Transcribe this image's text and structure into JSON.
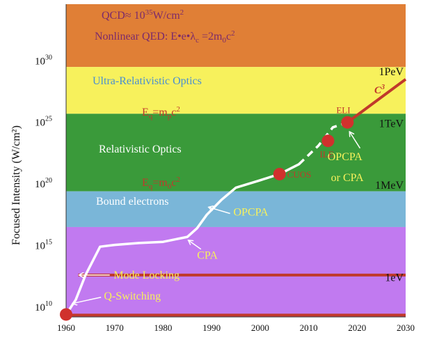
{
  "chart_data": {
    "type": "line",
    "title": "",
    "ylabel": "Focused Intensity (W/cm²)",
    "xlabel": "",
    "xlim": [
      1960,
      2030
    ],
    "ylim_log10": [
      9.2,
      34.6
    ],
    "x_ticks": [
      "1960",
      "1970",
      "1980",
      "1990",
      "2000",
      "2010",
      "2020",
      "2030"
    ],
    "y_ticks": [
      {
        "log": 10,
        "base": "10",
        "exp": "10"
      },
      {
        "log": 15,
        "base": "10",
        "exp": "15"
      },
      {
        "log": 20,
        "base": "10",
        "exp": "20"
      },
      {
        "log": 25,
        "base": "10",
        "exp": "25"
      },
      {
        "log": 30,
        "base": "10",
        "exp": "30"
      }
    ],
    "colors": {
      "qcd_band": "#e07f36",
      "ultra_band": "#f7f15c",
      "relativistic_band": "#3a9a3a",
      "bound_band": "#7ab6d8",
      "nonrel_band": "#c17af0",
      "curve": "#ffffff",
      "marker": "#d0312d",
      "red_line": "#c0392b"
    },
    "bands": [
      {
        "name": "qcd",
        "from_log": 29.5,
        "to_log": 34.6,
        "color_key": "qcd_band"
      },
      {
        "name": "ultra",
        "from_log": 25.7,
        "to_log": 29.5,
        "color_key": "ultra_band"
      },
      {
        "name": "relativistic",
        "from_log": 19.4,
        "to_log": 25.7,
        "color_key": "relativistic_band"
      },
      {
        "name": "bound",
        "from_log": 16.5,
        "to_log": 19.4,
        "color_key": "bound_band"
      },
      {
        "name": "nonrel",
        "from_log": 9.2,
        "to_log": 16.5,
        "color_key": "nonrel_band"
      }
    ],
    "band_labels": {
      "qcd_prefix": "QCD",
      "qcd_approx": "≈",
      "qcd_base": " 10",
      "qcd_exp": "35",
      "qcd_unit": "W/cm",
      "qcd_sq": "2",
      "nqed_prefix": "Nonlinear QED: E•e•λ",
      "nqed_sub_c": "c",
      "nqed_mid": " =2m",
      "nqed_sub_0": "0",
      "nqed_c": "c",
      "nqed_sq": "2",
      "ultra": "Ultra-Relativistic Optics",
      "eq_mp_E": "E",
      "eq_mp_q": "q",
      "eq_mp_mid": "=m",
      "eq_mp_p": "p",
      "eq_mp_c": "c",
      "eq_mp_sq": "2",
      "relativistic": "Relativistic Optics",
      "eq_m0_E": "E",
      "eq_m0_q": "q",
      "eq_m0_mid": "=m",
      "eq_m0_0": "0",
      "eq_m0_c": "c",
      "eq_m0_sq": "2",
      "bound": "Bound electrons"
    },
    "energy_labels": [
      "1PeV",
      "1TeV",
      "1MeV",
      "1eV"
    ],
    "energy_positions_log": [
      29.1,
      24.9,
      19.9,
      12.4
    ],
    "curve_solid": [
      [
        1960,
        9.4
      ],
      [
        1962,
        10.6
      ],
      [
        1964,
        12.6
      ],
      [
        1967,
        14.9
      ],
      [
        1970,
        15.05
      ],
      [
        1975,
        15.2
      ],
      [
        1980,
        15.3
      ],
      [
        1985,
        15.7
      ],
      [
        1987,
        16.4
      ],
      [
        1989,
        17.5
      ],
      [
        1992,
        18.7
      ],
      [
        1995,
        19.7
      ],
      [
        2000,
        20.3
      ],
      [
        2004,
        20.8
      ],
      [
        2008,
        21.6
      ]
    ],
    "curve_dashed": [
      [
        2008,
        21.6
      ],
      [
        2012,
        23.1
      ],
      [
        2015,
        24.6
      ],
      [
        2018,
        25.0
      ]
    ],
    "c3_line": [
      [
        2018,
        25.0
      ],
      [
        2030,
        28.5
      ]
    ],
    "c3_label": "C",
    "c3_exp": "3",
    "hlines": [
      {
        "log": 12.6,
        "from": 1962.5,
        "to": 2030
      },
      {
        "log": 9.35,
        "from": 1960,
        "to": 2030
      }
    ],
    "markers": [
      {
        "x": 1960,
        "y": 9.4,
        "label": ""
      },
      {
        "x": 2004,
        "y": 20.8,
        "label": "CUOS"
      },
      {
        "x": 2014,
        "y": 23.5,
        "label": "ILE"
      },
      {
        "x": 2018,
        "y": 25.0,
        "label": "ELI"
      }
    ],
    "annotations": [
      {
        "text": "OPCPA",
        "text_x": 1994.5,
        "text_y": 17.7,
        "arrow_to_x": 1989.5,
        "arrow_to_y": 18.1,
        "arrow_from_x": 1993.8,
        "arrow_from_y": 17.6
      },
      {
        "text": "CPA",
        "text_x": 1987,
        "text_y": 14.2,
        "arrow_to_x": 1985.3,
        "arrow_to_y": 15.4,
        "arrow_from_x": 1987.8,
        "arrow_from_y": 14.7
      },
      {
        "text": "Mode Locking",
        "text_x": 1969.8,
        "text_y": 12.6,
        "arrow_to_x": 1962.8,
        "arrow_to_y": 12.6,
        "arrow_from_x": 1969.0,
        "arrow_from_y": 12.6
      },
      {
        "text": "Q-Switching",
        "text_x": 1967.8,
        "text_y": 10.9,
        "arrow_to_x": 1961.4,
        "arrow_to_y": 10.3,
        "arrow_from_x": 1967.2,
        "arrow_from_y": 10.8
      },
      {
        "text": "OPCPA",
        "text_x": 2013.9,
        "text_y": 22.2,
        "arrow_to_x": 2018.5,
        "arrow_to_y": 24.2,
        "arrow_from_x": 2020.6,
        "arrow_from_y": 22.9
      },
      {
        "text": "or CPA",
        "text_x": 2014.6,
        "text_y": 20.5,
        "arrow_to_x": null,
        "arrow_to_y": null,
        "arrow_from_x": null,
        "arrow_from_y": null
      }
    ]
  }
}
